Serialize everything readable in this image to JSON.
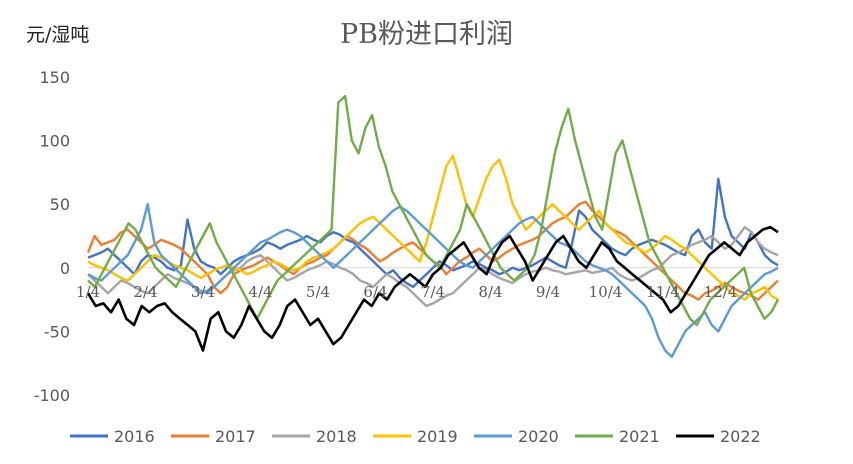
{
  "chart_data": {
    "type": "line",
    "title": "PB粉进口利润",
    "unit_label": "元/湿吨",
    "ylim": [
      -100,
      150
    ],
    "yticks": [
      150,
      100,
      50,
      0,
      -50,
      -100
    ],
    "xticks": [
      "1/4",
      "2/4",
      "3/4",
      "4/4",
      "5/4",
      "6/4",
      "7/4",
      "8/4",
      "9/4",
      "10/4",
      "11/4",
      "12/4"
    ],
    "legend_position": "bottom",
    "series": [
      {
        "name": "2016",
        "color": "#4472C4",
        "values": [
          8,
          10,
          12,
          15,
          10,
          5,
          0,
          -5,
          5,
          10,
          8,
          5,
          0,
          -2,
          2,
          38,
          15,
          5,
          2,
          0,
          -5,
          0,
          5,
          8,
          10,
          12,
          15,
          20,
          18,
          15,
          18,
          20,
          22,
          25,
          22,
          20,
          25,
          28,
          26,
          22,
          20,
          15,
          10,
          5,
          0,
          -5,
          -2,
          -8,
          -12,
          -15,
          -10,
          -5,
          0,
          5,
          2,
          -2,
          0,
          2,
          5,
          3,
          0,
          -2,
          -5,
          -3,
          0,
          -2,
          0,
          2,
          5,
          8,
          5,
          2,
          0,
          20,
          45,
          40,
          30,
          25,
          20,
          15,
          12,
          10,
          15,
          18,
          20,
          22,
          20,
          18,
          15,
          12,
          10,
          25,
          30,
          20,
          15,
          70,
          40,
          25,
          20,
          15,
          28,
          20,
          10,
          5,
          2
        ]
      },
      {
        "name": "2017",
        "color": "#ED7D31",
        "values": [
          12,
          25,
          18,
          20,
          22,
          28,
          30,
          25,
          20,
          15,
          18,
          22,
          20,
          18,
          15,
          10,
          5,
          0,
          -5,
          -15,
          -20,
          -15,
          -5,
          -2,
          0,
          2,
          5,
          8,
          5,
          2,
          -2,
          -5,
          0,
          3,
          5,
          8,
          10,
          15,
          20,
          25,
          22,
          18,
          15,
          10,
          5,
          8,
          12,
          15,
          18,
          20,
          15,
          10,
          5,
          2,
          -5,
          0,
          5,
          8,
          12,
          15,
          10,
          5,
          8,
          12,
          15,
          18,
          20,
          22,
          25,
          30,
          35,
          38,
          40,
          45,
          50,
          52,
          45,
          40,
          35,
          30,
          28,
          25,
          20,
          15,
          10,
          5,
          0,
          -5,
          -10,
          -15,
          -20,
          -22,
          -25,
          -20,
          -18,
          -15,
          -12,
          -15,
          -18,
          -20,
          -22,
          -25,
          -20,
          -15,
          -10
        ]
      },
      {
        "name": "2018",
        "color": "#A5A5A5",
        "values": [
          -5,
          -10,
          -15,
          -20,
          -15,
          -10,
          -12,
          -15,
          -18,
          -20,
          -15,
          -10,
          -5,
          -8,
          -10,
          -12,
          -15,
          -18,
          -20,
          -15,
          -10,
          -5,
          -2,
          0,
          5,
          8,
          10,
          5,
          0,
          -5,
          -10,
          -8,
          -5,
          -2,
          0,
          2,
          5,
          3,
          0,
          -2,
          -5,
          -10,
          -12,
          -15,
          -10,
          -5,
          -8,
          -12,
          -15,
          -20,
          -25,
          -30,
          -28,
          -25,
          -22,
          -20,
          -15,
          -10,
          -5,
          0,
          -2,
          -5,
          -8,
          -10,
          -12,
          -8,
          -5,
          -3,
          -2,
          0,
          -2,
          -3,
          -5,
          -4,
          -3,
          -2,
          -4,
          -3,
          -2,
          0,
          -5,
          -8,
          -10,
          -8,
          -5,
          -2,
          0,
          5,
          10,
          12,
          15,
          18,
          20,
          22,
          25,
          20,
          15,
          18,
          25,
          32,
          28,
          20,
          15,
          12,
          10
        ]
      },
      {
        "name": "2019",
        "color": "#FFC000",
        "values": [
          5,
          2,
          0,
          -2,
          -5,
          -8,
          -10,
          -5,
          0,
          5,
          10,
          8,
          5,
          2,
          0,
          -2,
          -5,
          -8,
          -5,
          -2,
          0,
          2,
          0,
          -2,
          -5,
          -3,
          0,
          2,
          5,
          3,
          0,
          -2,
          0,
          5,
          8,
          10,
          12,
          15,
          20,
          25,
          30,
          35,
          38,
          40,
          35,
          30,
          25,
          20,
          15,
          10,
          5,
          20,
          40,
          60,
          80,
          88,
          70,
          50,
          40,
          55,
          70,
          80,
          85,
          70,
          50,
          40,
          30,
          35,
          40,
          45,
          50,
          45,
          40,
          35,
          30,
          35,
          40,
          45,
          35,
          30,
          25,
          20,
          18,
          15,
          12,
          15,
          20,
          25,
          22,
          18,
          15,
          10,
          5,
          0,
          -5,
          -10,
          -15,
          -20,
          -22,
          -25,
          -20,
          -18,
          -15,
          -22,
          -25
        ]
      },
      {
        "name": "2020",
        "color": "#5B9BD5",
        "values": [
          -5,
          -8,
          -10,
          -5,
          0,
          5,
          10,
          20,
          30,
          50,
          20,
          10,
          5,
          0,
          -5,
          -10,
          -15,
          -20,
          -18,
          -15,
          -10,
          -5,
          0,
          5,
          10,
          15,
          20,
          22,
          25,
          28,
          30,
          28,
          25,
          20,
          15,
          10,
          5,
          0,
          5,
          10,
          15,
          20,
          25,
          30,
          35,
          40,
          45,
          48,
          45,
          40,
          35,
          30,
          25,
          20,
          15,
          10,
          5,
          2,
          0,
          5,
          10,
          15,
          20,
          25,
          30,
          35,
          38,
          40,
          35,
          30,
          25,
          20,
          18,
          15,
          10,
          5,
          2,
          0,
          -2,
          -5,
          -10,
          -15,
          -20,
          -25,
          -30,
          -40,
          -55,
          -65,
          -70,
          -60,
          -50,
          -45,
          -40,
          -35,
          -45,
          -50,
          -40,
          -30,
          -25,
          -20,
          -15,
          -10,
          -5,
          -3,
          0
        ]
      },
      {
        "name": "2021",
        "color": "#70AD47",
        "values": [
          -10,
          -15,
          -5,
          5,
          15,
          25,
          35,
          30,
          20,
          10,
          0,
          -5,
          -10,
          -15,
          -5,
          5,
          15,
          25,
          35,
          20,
          10,
          0,
          -10,
          -20,
          -30,
          -40,
          -30,
          -20,
          -10,
          -5,
          0,
          5,
          10,
          15,
          20,
          25,
          30,
          130,
          135,
          100,
          90,
          110,
          120,
          95,
          80,
          60,
          50,
          40,
          30,
          20,
          10,
          5,
          0,
          10,
          20,
          30,
          50,
          40,
          30,
          20,
          10,
          0,
          -5,
          -10,
          -5,
          0,
          10,
          30,
          60,
          90,
          110,
          125,
          100,
          80,
          60,
          40,
          30,
          60,
          90,
          100,
          80,
          60,
          40,
          20,
          10,
          0,
          -10,
          -20,
          -30,
          -40,
          -45,
          -35,
          -25,
          -20,
          -15,
          -10,
          -5,
          0,
          -20,
          -30,
          -40,
          -35,
          -25
        ]
      },
      {
        "name": "2022",
        "color": "#000000",
        "values": [
          -20,
          -30,
          -28,
          -35,
          -25,
          -40,
          -45,
          -30,
          -35,
          -30,
          -28,
          -35,
          -40,
          -45,
          -50,
          -65,
          -40,
          -35,
          -50,
          -55,
          -45,
          -30,
          -40,
          -50,
          -55,
          -45,
          -30,
          -25,
          -35,
          -45,
          -40,
          -50,
          -60,
          -55,
          -45,
          -35,
          -25,
          -30,
          -20,
          -25,
          -15,
          -10,
          -5,
          -10,
          -15,
          -5,
          0,
          10,
          15,
          20,
          10,
          0,
          -5,
          10,
          20,
          25,
          15,
          5,
          -10,
          0,
          10,
          20,
          25,
          15,
          5,
          0,
          10,
          20,
          15,
          5,
          0,
          -5,
          -10,
          -15,
          -20,
          -25,
          -35,
          -30,
          -20,
          -10,
          0,
          10,
          15,
          20,
          15,
          10,
          20,
          25,
          30,
          32,
          28
        ]
      }
    ]
  }
}
